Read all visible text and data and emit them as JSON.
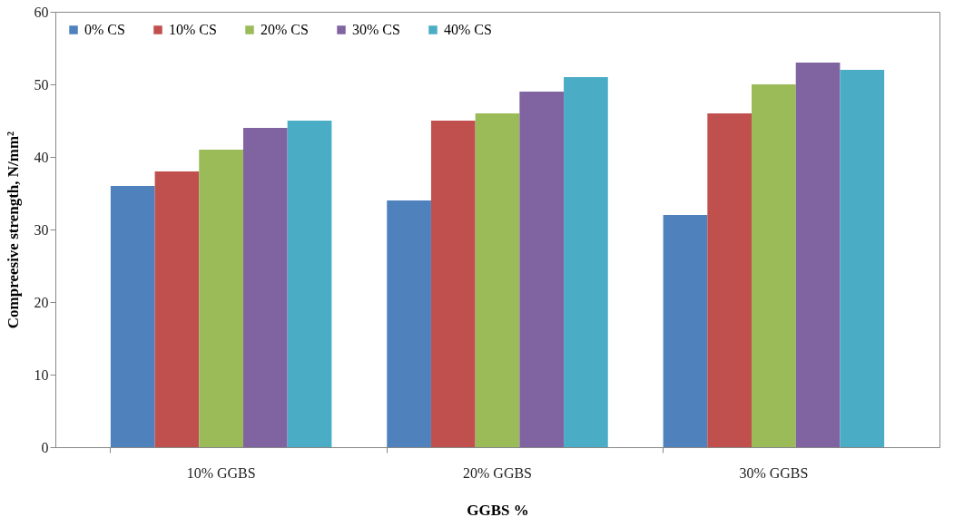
{
  "chart_data": {
    "type": "bar",
    "xlabel": "GGBS %",
    "ylabel": "Compreesive strength, N/mm²",
    "categories": [
      "10% GGBS",
      "20% GGBS",
      "30% GGBS"
    ],
    "series": [
      {
        "name": "0% CS",
        "color": "#4f81bd",
        "values": [
          36,
          34,
          32
        ]
      },
      {
        "name": "10% CS",
        "color": "#c0504d",
        "values": [
          38,
          45,
          46
        ]
      },
      {
        "name": "20% CS",
        "color": "#9bbb59",
        "values": [
          41,
          46,
          50
        ]
      },
      {
        "name": "30% CS",
        "color": "#8064a2",
        "values": [
          44,
          49,
          53
        ]
      },
      {
        "name": "40% CS",
        "color": "#4bacc6",
        "values": [
          45,
          51,
          52
        ]
      }
    ],
    "ylim": [
      0,
      60
    ],
    "yticks": [
      0,
      10,
      20,
      30,
      40,
      50,
      60
    ],
    "grid": false,
    "legend": "top left"
  }
}
